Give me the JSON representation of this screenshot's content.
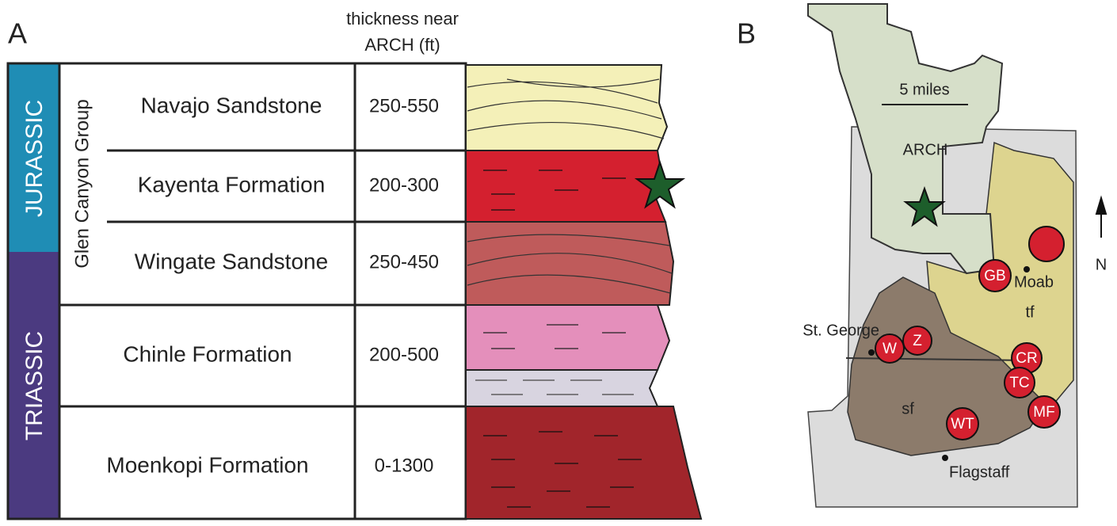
{
  "panel_a": {
    "label": "A",
    "header": [
      "thickness near",
      "ARCH  (ft)"
    ],
    "periods": [
      "JURASSIC",
      "TRIASSIC"
    ],
    "group": "Glen Canyon Group",
    "formations": [
      {
        "name": "Navajo Sandstone",
        "thickness": "250-550"
      },
      {
        "name": "Kayenta Formation",
        "thickness": "200-300"
      },
      {
        "name": "Wingate Sandstone",
        "thickness": "250-450"
      },
      {
        "name": "Chinle Formation",
        "thickness": "200-500"
      },
      {
        "name": "Moenkopi Formation",
        "thickness": "0-1300"
      }
    ]
  },
  "panel_b": {
    "label": "B",
    "scale": "5 miles",
    "park": "ARCH",
    "north": "N",
    "regions": [
      "tf",
      "sf"
    ],
    "cities": [
      "Moab",
      "St. George",
      "Flagstaff"
    ],
    "sites": [
      "GB",
      "W",
      "Z",
      "CR",
      "TC",
      "MF",
      "WT"
    ]
  }
}
